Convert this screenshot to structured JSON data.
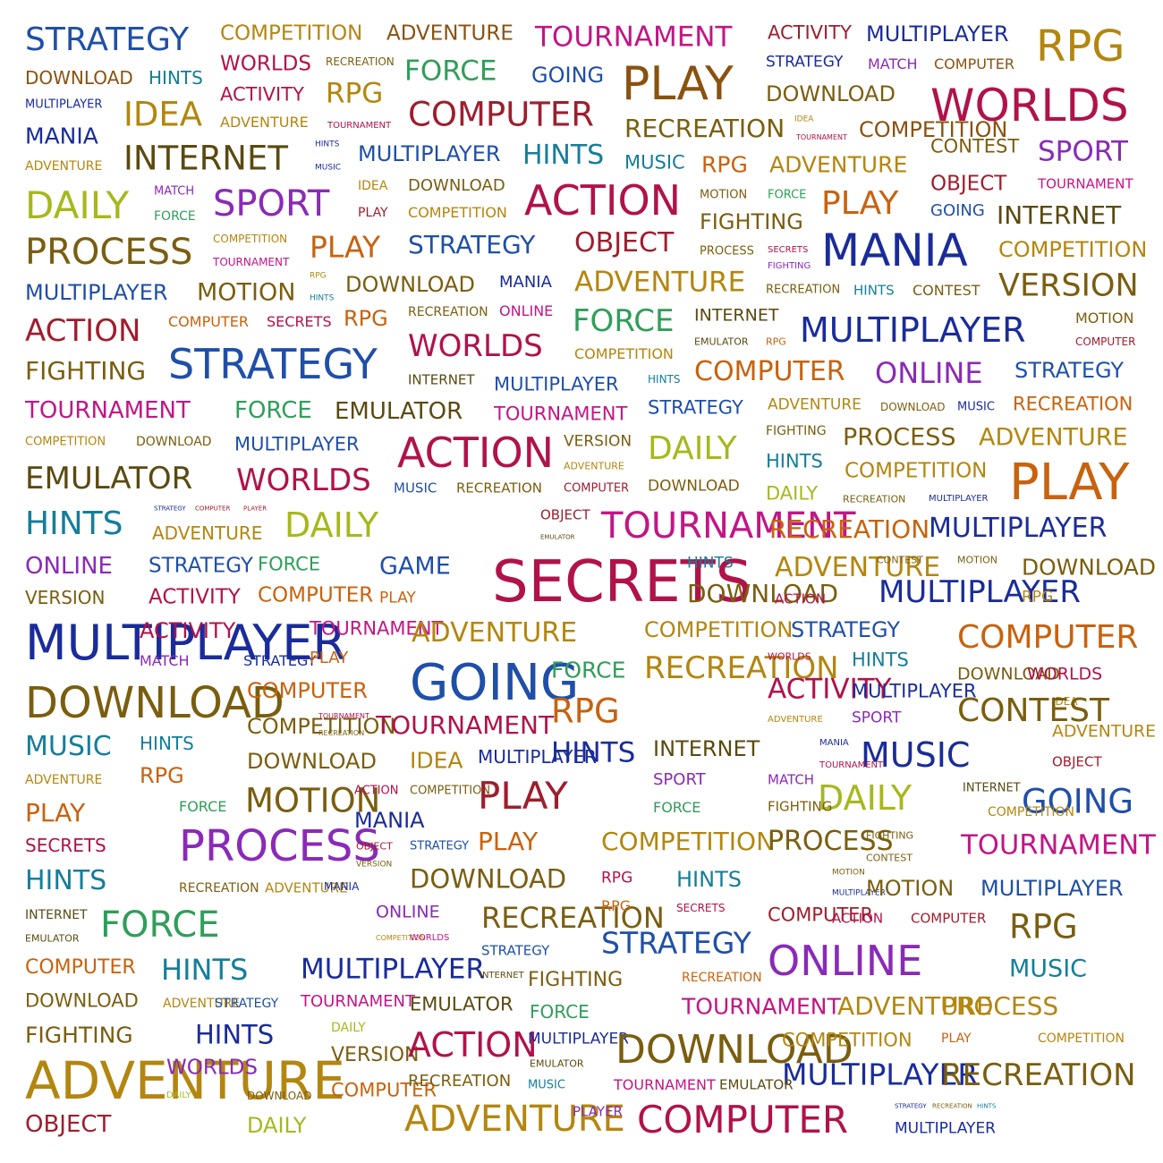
{
  "palette": {
    "blue": "#1f4fa8",
    "navy": "#1a2c9a",
    "gold": "#b3860f",
    "brown": "#8a5210",
    "olive": "#7a5e0f",
    "crimson": "#b1124a",
    "wine": "#9e1e2e",
    "purple": "#8a2ab8",
    "magenta": "#c21685",
    "teal": "#157e9a",
    "green": "#2f9e5a",
    "lime": "#a6b81c",
    "orange": "#c8620e",
    "darkolive": "#5a4a10"
  },
  "words": [
    {
      "text": "STRATEGY",
      "color": "blue"
    },
    {
      "text": "COMPETITION",
      "color": "gold"
    },
    {
      "text": "ADVENTURE",
      "color": "brown"
    },
    {
      "text": "TOURNAMENT",
      "color": "magenta"
    },
    {
      "text": "ACTIVITY",
      "color": "wine"
    },
    {
      "text": "MULTIPLAYER",
      "color": "navy"
    },
    {
      "text": "RPG",
      "color": "gold"
    },
    {
      "text": "DOWNLOAD",
      "color": "brown"
    },
    {
      "text": "HINTS",
      "color": "teal"
    },
    {
      "text": "WORLDS",
      "color": "crimson"
    },
    {
      "text": "RECREATION",
      "color": "olive"
    },
    {
      "text": "FORCE",
      "color": "green"
    },
    {
      "text": "GOING",
      "color": "blue"
    },
    {
      "text": "PLAY",
      "color": "brown"
    },
    {
      "text": "STRATEGY",
      "color": "navy"
    },
    {
      "text": "MATCH",
      "color": "purple"
    },
    {
      "text": "COMPUTER",
      "color": "brown"
    },
    {
      "text": "MULTIPLAYER",
      "color": "navy"
    },
    {
      "text": "IDEA",
      "color": "gold"
    },
    {
      "text": "ACTIVITY",
      "color": "crimson"
    },
    {
      "text": "RPG",
      "color": "gold"
    },
    {
      "text": "COMPUTER",
      "color": "wine"
    },
    {
      "text": "DOWNLOAD",
      "color": "olive"
    },
    {
      "text": "WORLDS",
      "color": "crimson"
    },
    {
      "text": "MANIA",
      "color": "navy"
    },
    {
      "text": "ADVENTURE",
      "color": "gold"
    },
    {
      "text": "TOURNAMENT",
      "color": "crimson"
    },
    {
      "text": "RECREATION",
      "color": "olive"
    },
    {
      "text": "IDEA",
      "color": "gold"
    },
    {
      "text": "COMPETITION",
      "color": "brown"
    },
    {
      "text": "TOURNAMENT",
      "color": "crimson"
    },
    {
      "text": "ADVENTURE",
      "color": "gold"
    },
    {
      "text": "INTERNET",
      "color": "darkolive"
    },
    {
      "text": "HINTS",
      "color": "navy"
    },
    {
      "text": "MUSIC",
      "color": "navy"
    },
    {
      "text": "MULTIPLAYER",
      "color": "blue"
    },
    {
      "text": "HINTS",
      "color": "teal"
    },
    {
      "text": "MUSIC",
      "color": "teal"
    },
    {
      "text": "RPG",
      "color": "orange"
    },
    {
      "text": "ADVENTURE",
      "color": "gold"
    },
    {
      "text": "CONTEST",
      "color": "olive"
    },
    {
      "text": "SPORT",
      "color": "purple"
    },
    {
      "text": "DAILY",
      "color": "lime"
    },
    {
      "text": "MATCH",
      "color": "purple"
    },
    {
      "text": "FORCE",
      "color": "green"
    },
    {
      "text": "SPORT",
      "color": "purple"
    },
    {
      "text": "IDEA",
      "color": "gold"
    },
    {
      "text": "DOWNLOAD",
      "color": "olive"
    },
    {
      "text": "PLAY",
      "color": "wine"
    },
    {
      "text": "COMPETITION",
      "color": "gold"
    },
    {
      "text": "ACTION",
      "color": "crimson"
    },
    {
      "text": "MOTION",
      "color": "olive"
    },
    {
      "text": "FORCE",
      "color": "green"
    },
    {
      "text": "FIGHTING",
      "color": "olive"
    },
    {
      "text": "PLAY",
      "color": "orange"
    },
    {
      "text": "OBJECT",
      "color": "wine"
    },
    {
      "text": "TOURNAMENT",
      "color": "magenta"
    },
    {
      "text": "GOING",
      "color": "blue"
    },
    {
      "text": "INTERNET",
      "color": "darkolive"
    },
    {
      "text": "PROCESS",
      "color": "olive"
    },
    {
      "text": "COMPETITION",
      "color": "gold"
    },
    {
      "text": "TOURNAMENT",
      "color": "magenta"
    },
    {
      "text": "PLAY",
      "color": "orange"
    },
    {
      "text": "STRATEGY",
      "color": "blue"
    },
    {
      "text": "OBJECT",
      "color": "wine"
    },
    {
      "text": "PROCESS",
      "color": "olive"
    },
    {
      "text": "SECRETS",
      "color": "crimson"
    },
    {
      "text": "FIGHTING",
      "color": "purple"
    },
    {
      "text": "MANIA",
      "color": "navy"
    },
    {
      "text": "COMPETITION",
      "color": "gold"
    },
    {
      "text": "MULTIPLAYER",
      "color": "blue"
    },
    {
      "text": "MOTION",
      "color": "olive"
    },
    {
      "text": "RPG",
      "color": "gold"
    },
    {
      "text": "HINTS",
      "color": "teal"
    },
    {
      "text": "DOWNLOAD",
      "color": "olive"
    },
    {
      "text": "MANIA",
      "color": "navy"
    },
    {
      "text": "ADVENTURE",
      "color": "gold"
    },
    {
      "text": "RECREATION",
      "color": "olive"
    },
    {
      "text": "HINTS",
      "color": "teal"
    },
    {
      "text": "CONTEST",
      "color": "olive"
    },
    {
      "text": "VERSION",
      "color": "olive"
    },
    {
      "text": "ACTION",
      "color": "wine"
    },
    {
      "text": "COMPUTER",
      "color": "orange"
    },
    {
      "text": "SECRETS",
      "color": "crimson"
    },
    {
      "text": "RPG",
      "color": "orange"
    },
    {
      "text": "RECREATION",
      "color": "olive"
    },
    {
      "text": "ONLINE",
      "color": "magenta"
    },
    {
      "text": "FORCE",
      "color": "green"
    },
    {
      "text": "INTERNET",
      "color": "darkolive"
    },
    {
      "text": "EMULATOR",
      "color": "darkolive"
    },
    {
      "text": "RPG",
      "color": "orange"
    },
    {
      "text": "MULTIPLAYER",
      "color": "navy"
    },
    {
      "text": "MOTION",
      "color": "olive"
    },
    {
      "text": "COMPUTER",
      "color": "wine"
    },
    {
      "text": "WORLDS",
      "color": "crimson"
    },
    {
      "text": "COMPETITION",
      "color": "gold"
    },
    {
      "text": "FIGHTING",
      "color": "olive"
    },
    {
      "text": "STRATEGY",
      "color": "blue"
    },
    {
      "text": "COMPUTER",
      "color": "orange"
    },
    {
      "text": "ONLINE",
      "color": "purple"
    },
    {
      "text": "STRATEGY",
      "color": "blue"
    },
    {
      "text": "INTERNET",
      "color": "darkolive"
    },
    {
      "text": "MULTIPLAYER",
      "color": "blue"
    },
    {
      "text": "HINTS",
      "color": "teal"
    },
    {
      "text": "TOURNAMENT",
      "color": "magenta"
    },
    {
      "text": "FORCE",
      "color": "green"
    },
    {
      "text": "EMULATOR",
      "color": "darkolive"
    },
    {
      "text": "TOURNAMENT",
      "color": "magenta"
    },
    {
      "text": "STRATEGY",
      "color": "blue"
    },
    {
      "text": "ADVENTURE",
      "color": "gold"
    },
    {
      "text": "DOWNLOAD",
      "color": "olive"
    },
    {
      "text": "MUSIC",
      "color": "navy"
    },
    {
      "text": "RECREATION",
      "color": "orange"
    },
    {
      "text": "COMPETITION",
      "color": "gold"
    },
    {
      "text": "DOWNLOAD",
      "color": "olive"
    },
    {
      "text": "MULTIPLAYER",
      "color": "blue"
    },
    {
      "text": "ACTION",
      "color": "crimson"
    },
    {
      "text": "VERSION",
      "color": "olive"
    },
    {
      "text": "DAILY",
      "color": "lime"
    },
    {
      "text": "FIGHTING",
      "color": "olive"
    },
    {
      "text": "PROCESS",
      "color": "olive"
    },
    {
      "text": "ADVENTURE",
      "color": "gold"
    },
    {
      "text": "EMULATOR",
      "color": "darkolive"
    },
    {
      "text": "WORLDS",
      "color": "crimson"
    },
    {
      "text": "ADVENTURE",
      "color": "gold"
    },
    {
      "text": "HINTS",
      "color": "teal"
    },
    {
      "text": "COMPETITION",
      "color": "gold"
    },
    {
      "text": "PLAY",
      "color": "orange"
    },
    {
      "text": "MUSIC",
      "color": "blue"
    },
    {
      "text": "RECREATION",
      "color": "olive"
    },
    {
      "text": "COMPUTER",
      "color": "wine"
    },
    {
      "text": "DOWNLOAD",
      "color": "olive"
    },
    {
      "text": "DAILY",
      "color": "lime"
    },
    {
      "text": "RECREATION",
      "color": "olive"
    },
    {
      "text": "MULTIPLAYER",
      "color": "navy"
    },
    {
      "text": "HINTS",
      "color": "teal"
    },
    {
      "text": "STRATEGY",
      "color": "navy"
    },
    {
      "text": "COMPUTER",
      "color": "wine"
    },
    {
      "text": "PLAYER",
      "color": "wine"
    },
    {
      "text": "ADVENTURE",
      "color": "gold"
    },
    {
      "text": "DAILY",
      "color": "lime"
    },
    {
      "text": "OBJECT",
      "color": "wine"
    },
    {
      "text": "EMULATOR",
      "color": "darkolive"
    },
    {
      "text": "TOURNAMENT",
      "color": "magenta"
    },
    {
      "text": "RECREATION",
      "color": "orange"
    },
    {
      "text": "MULTIPLAYER",
      "color": "navy"
    },
    {
      "text": "ACTION",
      "color": "crimson"
    },
    {
      "text": "ONLINE",
      "color": "purple"
    },
    {
      "text": "STRATEGY",
      "color": "blue"
    },
    {
      "text": "FORCE",
      "color": "green"
    },
    {
      "text": "GAME",
      "color": "blue"
    },
    {
      "text": "SECRETS",
      "color": "crimson"
    },
    {
      "text": "HINTS",
      "color": "teal"
    },
    {
      "text": "ADVENTURE",
      "color": "gold"
    },
    {
      "text": "CONTEST",
      "color": "olive"
    },
    {
      "text": "MOTION",
      "color": "olive"
    },
    {
      "text": "DOWNLOAD",
      "color": "olive"
    },
    {
      "text": "VERSION",
      "color": "olive"
    },
    {
      "text": "ACTIVITY",
      "color": "crimson"
    },
    {
      "text": "COMPUTER",
      "color": "orange"
    },
    {
      "text": "PLAY",
      "color": "orange"
    },
    {
      "text": "DOWNLOAD",
      "color": "olive"
    },
    {
      "text": "ACTION",
      "color": "crimson"
    },
    {
      "text": "MULTIPLAYER",
      "color": "navy"
    },
    {
      "text": "RPG",
      "color": "gold"
    },
    {
      "text": "MULTIPLAYER",
      "color": "navy"
    },
    {
      "text": "ACTIVITY",
      "color": "crimson"
    },
    {
      "text": "TOURNAMENT",
      "color": "magenta"
    },
    {
      "text": "ADVENTURE",
      "color": "gold"
    },
    {
      "text": "COMPETITION",
      "color": "gold"
    },
    {
      "text": "STRATEGY",
      "color": "blue"
    },
    {
      "text": "COMPUTER",
      "color": "orange"
    },
    {
      "text": "MATCH",
      "color": "purple"
    },
    {
      "text": "STRATEGY",
      "color": "navy"
    },
    {
      "text": "PLAY",
      "color": "orange"
    },
    {
      "text": "GOING",
      "color": "blue"
    },
    {
      "text": "FORCE",
      "color": "green"
    },
    {
      "text": "RECREATION",
      "color": "gold"
    },
    {
      "text": "WORLDS",
      "color": "crimson"
    },
    {
      "text": "HINTS",
      "color": "teal"
    },
    {
      "text": "DOWNLOAD",
      "color": "olive"
    },
    {
      "text": "WORLDS",
      "color": "crimson"
    },
    {
      "text": "DOWNLOAD",
      "color": "olive"
    },
    {
      "text": "COMPUTER",
      "color": "orange"
    },
    {
      "text": "RPG",
      "color": "orange"
    },
    {
      "text": "ACTIVITY",
      "color": "crimson"
    },
    {
      "text": "MULTIPLAYER",
      "color": "navy"
    },
    {
      "text": "IDEA",
      "color": "gold"
    },
    {
      "text": "COMPETITION",
      "color": "olive"
    },
    {
      "text": "TOURNAMENT",
      "color": "crimson"
    },
    {
      "text": "RECREATION",
      "color": "olive"
    },
    {
      "text": "TOURNAMENT",
      "color": "crimson"
    },
    {
      "text": "ADVENTURE",
      "color": "gold"
    },
    {
      "text": "SPORT",
      "color": "purple"
    },
    {
      "text": "CONTEST",
      "color": "olive"
    },
    {
      "text": "MUSIC",
      "color": "teal"
    },
    {
      "text": "HINTS",
      "color": "teal"
    },
    {
      "text": "MULTIPLAYER",
      "color": "navy"
    },
    {
      "text": "HINTS",
      "color": "navy"
    },
    {
      "text": "INTERNET",
      "color": "darkolive"
    },
    {
      "text": "MANIA",
      "color": "navy"
    },
    {
      "text": "MUSIC",
      "color": "navy"
    },
    {
      "text": "ADVENTURE",
      "color": "gold"
    },
    {
      "text": "TOURNAMENT",
      "color": "crimson"
    },
    {
      "text": "OBJECT",
      "color": "wine"
    },
    {
      "text": "ADVENTURE",
      "color": "gold"
    },
    {
      "text": "RPG",
      "color": "orange"
    },
    {
      "text": "DOWNLOAD",
      "color": "olive"
    },
    {
      "text": "IDEA",
      "color": "gold"
    },
    {
      "text": "SPORT",
      "color": "purple"
    },
    {
      "text": "MATCH",
      "color": "purple"
    },
    {
      "text": "DAILY",
      "color": "lime"
    },
    {
      "text": "INTERNET",
      "color": "darkolive"
    },
    {
      "text": "GOING",
      "color": "blue"
    },
    {
      "text": "PLAY",
      "color": "orange"
    },
    {
      "text": "FORCE",
      "color": "green"
    },
    {
      "text": "MOTION",
      "color": "olive"
    },
    {
      "text": "ACTION",
      "color": "crimson"
    },
    {
      "text": "COMPETITION",
      "color": "olive"
    },
    {
      "text": "PLAY",
      "color": "wine"
    },
    {
      "text": "FORCE",
      "color": "green"
    },
    {
      "text": "FIGHTING",
      "color": "olive"
    },
    {
      "text": "COMPETITION",
      "color": "gold"
    },
    {
      "text": "MANIA",
      "color": "navy"
    },
    {
      "text": "SECRETS",
      "color": "crimson"
    },
    {
      "text": "PROCESS",
      "color": "purple"
    },
    {
      "text": "OBJECT",
      "color": "wine"
    },
    {
      "text": "STRATEGY",
      "color": "blue"
    },
    {
      "text": "PLAY",
      "color": "orange"
    },
    {
      "text": "COMPETITION",
      "color": "gold"
    },
    {
      "text": "PROCESS",
      "color": "olive"
    },
    {
      "text": "FIGHTING",
      "color": "olive"
    },
    {
      "text": "TOURNAMENT",
      "color": "magenta"
    },
    {
      "text": "VERSION",
      "color": "olive"
    },
    {
      "text": "CONTEST",
      "color": "olive"
    },
    {
      "text": "HINTS",
      "color": "teal"
    },
    {
      "text": "RECREATION",
      "color": "olive"
    },
    {
      "text": "ADVENTURE",
      "color": "gold"
    },
    {
      "text": "MANIA",
      "color": "navy"
    },
    {
      "text": "DOWNLOAD",
      "color": "olive"
    },
    {
      "text": "RPG",
      "color": "crimson"
    },
    {
      "text": "HINTS",
      "color": "teal"
    },
    {
      "text": "MOTION",
      "color": "olive"
    },
    {
      "text": "MULTIPLAYER",
      "color": "navy"
    },
    {
      "text": "MOTION",
      "color": "olive"
    },
    {
      "text": "MULTIPLAYER",
      "color": "blue"
    },
    {
      "text": "INTERNET",
      "color": "darkolive"
    },
    {
      "text": "FORCE",
      "color": "green"
    },
    {
      "text": "ONLINE",
      "color": "purple"
    },
    {
      "text": "RECREATION",
      "color": "olive"
    },
    {
      "text": "RPG",
      "color": "orange"
    },
    {
      "text": "SECRETS",
      "color": "crimson"
    },
    {
      "text": "COMPUTER",
      "color": "wine"
    },
    {
      "text": "ACTION",
      "color": "crimson"
    },
    {
      "text": "COMPUTER",
      "color": "wine"
    },
    {
      "text": "RPG",
      "color": "olive"
    },
    {
      "text": "EMULATOR",
      "color": "darkolive"
    },
    {
      "text": "COMPETITION",
      "color": "gold"
    },
    {
      "text": "WORLDS",
      "color": "magenta"
    },
    {
      "text": "STRATEGY",
      "color": "blue"
    },
    {
      "text": "STRATEGY",
      "color": "blue"
    },
    {
      "text": "ONLINE",
      "color": "purple"
    },
    {
      "text": "COMPUTER",
      "color": "orange"
    },
    {
      "text": "HINTS",
      "color": "teal"
    },
    {
      "text": "MULTIPLAYER",
      "color": "navy"
    },
    {
      "text": "INTERNET",
      "color": "darkolive"
    },
    {
      "text": "FIGHTING",
      "color": "olive"
    },
    {
      "text": "RECREATION",
      "color": "orange"
    },
    {
      "text": "MUSIC",
      "color": "teal"
    },
    {
      "text": "DOWNLOAD",
      "color": "olive"
    },
    {
      "text": "ADVENTURE",
      "color": "gold"
    },
    {
      "text": "STRATEGY",
      "color": "blue"
    },
    {
      "text": "TOURNAMENT",
      "color": "magenta"
    },
    {
      "text": "EMULATOR",
      "color": "darkolive"
    },
    {
      "text": "FORCE",
      "color": "green"
    },
    {
      "text": "TOURNAMENT",
      "color": "magenta"
    },
    {
      "text": "ADVENTURE",
      "color": "gold"
    },
    {
      "text": "PROCESS",
      "color": "gold"
    },
    {
      "text": "FIGHTING",
      "color": "olive"
    },
    {
      "text": "HINTS",
      "color": "navy"
    },
    {
      "text": "DAILY",
      "color": "lime"
    },
    {
      "text": "VERSION",
      "color": "olive"
    },
    {
      "text": "ACTION",
      "color": "crimson"
    },
    {
      "text": "MULTIPLAYER",
      "color": "navy"
    },
    {
      "text": "DOWNLOAD",
      "color": "olive"
    },
    {
      "text": "COMPETITION",
      "color": "gold"
    },
    {
      "text": "PLAY",
      "color": "orange"
    },
    {
      "text": "COMPETITION",
      "color": "gold"
    },
    {
      "text": "ADVENTURE",
      "color": "gold"
    },
    {
      "text": "WORLDS",
      "color": "purple"
    },
    {
      "text": "EMULATOR",
      "color": "darkolive"
    },
    {
      "text": "MULTIPLAYER",
      "color": "navy"
    },
    {
      "text": "RECREATION",
      "color": "olive"
    },
    {
      "text": "DAILY",
      "color": "lime"
    },
    {
      "text": "DOWNLOAD",
      "color": "olive"
    },
    {
      "text": "COMPUTER",
      "color": "orange"
    },
    {
      "text": "RECREATION",
      "color": "olive"
    },
    {
      "text": "MUSIC",
      "color": "teal"
    },
    {
      "text": "TOURNAMENT",
      "color": "magenta"
    },
    {
      "text": "EMULATOR",
      "color": "darkolive"
    },
    {
      "text": "OBJECT",
      "color": "wine"
    },
    {
      "text": "DAILY",
      "color": "lime"
    },
    {
      "text": "ADVENTURE",
      "color": "gold"
    },
    {
      "text": "PLAYER",
      "color": "purple"
    },
    {
      "text": "COMPUTER",
      "color": "crimson"
    },
    {
      "text": "STRATEGY",
      "color": "navy"
    },
    {
      "text": "RECREATION",
      "color": "olive"
    },
    {
      "text": "HINTS",
      "color": "teal"
    },
    {
      "text": "MULTIPLAYER",
      "color": "navy"
    }
  ]
}
